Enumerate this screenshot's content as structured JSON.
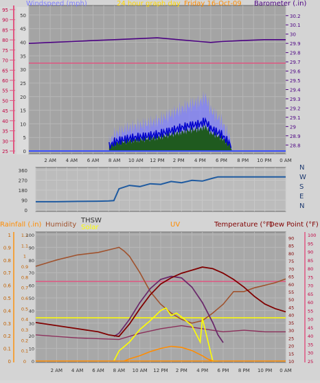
{
  "header": {
    "windspeed_label": "Windspeed (mph)",
    "graph_title": "24 hour graph day",
    "date_label": "Friday 16-Oct-09",
    "barometer_label": "Barometer (.in)"
  },
  "bottom_header": {
    "rainfall_label": "Rainfall (.in)",
    "humidity_label": "Humidity",
    "thsw_label": "THSW",
    "solar_label": "Solar",
    "uv_label": "UV",
    "temperature_label": "Temperature (°F)",
    "dewpoint_label": "Dew Point (°F)"
  },
  "colors": {
    "windspeed": "#8080ff",
    "barometer": "#4b0082",
    "title": "#ffd700",
    "temperature": "#800000",
    "humidity": "#a0522d",
    "rain": "#ff8c00",
    "solar": "#ffff00",
    "uv": "#ff8c00",
    "dewpoint": "#ff1493",
    "direction": "#1e5aa0"
  },
  "chart_data": [
    {
      "type": "line",
      "title": "24 hour graph day",
      "subtitle": "Friday 16-Oct-09",
      "x_ticks": [
        "2 AM",
        "4 AM",
        "6 AM",
        "8 AM",
        "10 AM",
        "12 PM",
        "2 PM",
        "4 PM",
        "6 PM",
        "8 PM",
        "10 PM",
        "0 AM"
      ],
      "y_left_label": "Windspeed (mph)",
      "y_left_ticks": [
        "0",
        "5",
        "10",
        "15",
        "20",
        "25",
        "30",
        "35",
        "40",
        "45",
        "50"
      ],
      "y_left_pink_ticks": [
        "25",
        "30",
        "35",
        "40",
        "45",
        "50",
        "55",
        "60",
        "65",
        "70",
        "75",
        "80",
        "85",
        "90",
        "95"
      ],
      "y_right_label": "Barometer (.in)",
      "y_right_ticks": [
        "28.8",
        "28.9",
        "29",
        "29.1",
        "29.2",
        "29.3",
        "29.4",
        "29.5",
        "29.6",
        "29.7",
        "29.8",
        "29.9",
        "30",
        "30.1",
        "30.2"
      ],
      "ylim_left": [
        0,
        52
      ],
      "ylim_right": [
        28.75,
        30.28
      ],
      "series": [
        {
          "name": "Barometer (.in)",
          "x_hours": [
            0,
            2,
            4,
            6,
            8,
            10,
            12,
            14,
            16,
            17,
            18,
            20,
            22,
            24
          ],
          "values": [
            29.9,
            29.91,
            29.92,
            29.93,
            29.94,
            29.95,
            29.96,
            29.94,
            29.92,
            29.91,
            29.92,
            29.93,
            29.94,
            29.94
          ]
        },
        {
          "name": "Windspeed (mph)",
          "x_hours": [
            0,
            7.5,
            8,
            9,
            10,
            11,
            12,
            13,
            14,
            15,
            16,
            16.5,
            17,
            18,
            19,
            24
          ],
          "values": [
            0,
            0,
            3,
            5,
            6,
            7,
            8,
            10,
            12,
            14,
            15,
            17,
            12,
            8,
            0,
            0
          ]
        }
      ]
    },
    {
      "type": "line",
      "title": "",
      "x_ticks": [
        "2 AM",
        "4 AM",
        "6 AM",
        "8 AM",
        "10 AM",
        "12 PM",
        "2 PM",
        "4 PM",
        "6 PM",
        "8 PM",
        "10 PM",
        "0 AM"
      ],
      "y_left_ticks": [
        "0",
        "90",
        "180",
        "270",
        "360"
      ],
      "y_right_ticks": [
        "N",
        "W",
        "S",
        "E",
        "N"
      ],
      "ylim": [
        0,
        360
      ],
      "series": [
        {
          "name": "Wind direction",
          "x_hours": [
            0,
            2,
            4,
            6,
            7,
            7.5,
            8,
            9,
            10,
            11,
            12,
            13,
            14,
            15,
            16,
            17,
            17.5,
            18,
            20,
            22,
            24
          ],
          "values": [
            75,
            75,
            78,
            80,
            82,
            85,
            200,
            215,
            220,
            230,
            240,
            250,
            255,
            260,
            270,
            280,
            300,
            300,
            300,
            300,
            300
          ]
        }
      ]
    },
    {
      "type": "line",
      "title": "",
      "x_ticks": [
        "2 AM",
        "4 AM",
        "6 AM",
        "8 AM",
        "10 AM",
        "12 PM",
        "2 PM",
        "4 PM",
        "6 PM",
        "8 PM",
        "10 PM",
        "0 AM"
      ],
      "y_left_rain_ticks": [
        "0",
        "0.1",
        "0.2",
        "0.3",
        "0.4",
        "0.5",
        "0.6",
        "0.7",
        "0.8",
        "0.9",
        "1"
      ],
      "y_left_uv_ticks": [
        "0",
        "0.1",
        "0.2",
        "0.3",
        "0.4",
        "0.5",
        "0.6",
        "0.7",
        "0.8",
        "0.9",
        "1",
        "1.1",
        "1.2"
      ],
      "y_left_humidity_ticks": [
        "0",
        "10",
        "20",
        "30",
        "40",
        "50",
        "60",
        "70",
        "80",
        "90",
        "100"
      ],
      "y_right_temp_ticks": [
        "10",
        "15",
        "20",
        "25",
        "30",
        "35",
        "40",
        "45",
        "50",
        "55",
        "60",
        "65",
        "70",
        "75",
        "80",
        "85",
        "90"
      ],
      "y_right_pink_ticks": [
        "25",
        "30",
        "35",
        "40",
        "45",
        "50",
        "55",
        "60",
        "65",
        "70",
        "75",
        "80",
        "85",
        "90",
        "95",
        "100"
      ],
      "ylim_left": [
        0,
        100
      ],
      "ylim_right": [
        10,
        92
      ],
      "series": [
        {
          "name": "Humidity",
          "x_hours": [
            0,
            2,
            4,
            6,
            7,
            8,
            8.5,
            9,
            10,
            11,
            12,
            13,
            14,
            15,
            16,
            17,
            18,
            19,
            20,
            21,
            22,
            23,
            24
          ],
          "values": [
            75,
            80,
            84,
            86,
            88,
            90,
            87,
            83,
            70,
            55,
            45,
            38,
            33,
            30,
            32,
            38,
            45,
            55,
            55,
            58,
            60,
            62,
            65
          ]
        },
        {
          "name": "Temperature (°F)",
          "x_hours": [
            0,
            2,
            4,
            6,
            7,
            8,
            9,
            10,
            11,
            12,
            13,
            14,
            15,
            16,
            17,
            18,
            19,
            20,
            21,
            22,
            23,
            24
          ],
          "values": [
            35,
            33,
            31,
            29,
            27,
            26,
            34,
            44,
            53,
            60,
            64,
            67,
            69,
            71,
            70,
            67,
            63,
            58,
            52,
            47,
            44,
            42
          ]
        },
        {
          "name": "Dew Point (°F)",
          "x_hours": [
            0,
            4,
            8,
            10,
            12,
            14,
            16,
            18,
            20,
            22,
            24
          ],
          "values": [
            27,
            25,
            24,
            28,
            31,
            33,
            31,
            29,
            30,
            29,
            29
          ]
        },
        {
          "name": "THSW",
          "x_hours": [
            7.5,
            8,
            9,
            10,
            11,
            12,
            13,
            14,
            15,
            16,
            17,
            17.5,
            18
          ],
          "values": [
            26,
            28,
            37,
            48,
            57,
            63,
            65,
            64,
            58,
            48,
            35,
            27,
            22
          ]
        },
        {
          "name": "Solar",
          "x_hours": [
            7.5,
            8,
            9,
            10,
            11,
            12,
            12.5,
            13,
            13.5,
            14,
            15,
            15.8,
            16,
            17,
            17.5
          ],
          "values": [
            0,
            8,
            15,
            25,
            32,
            40,
            42,
            36,
            38,
            35,
            28,
            15,
            34,
            0,
            0
          ]
        },
        {
          "name": "UV",
          "x_hours": [
            8.5,
            9,
            10,
            11,
            12,
            13,
            14,
            15,
            16,
            16.5,
            17
          ],
          "values": [
            0.0,
            0.02,
            0.05,
            0.09,
            0.12,
            0.14,
            0.13,
            0.1,
            0.05,
            0.02,
            0.0
          ]
        },
        {
          "name": "Rainfall (.in)",
          "x_hours": [
            0,
            24
          ],
          "values": [
            0,
            0
          ]
        }
      ]
    }
  ]
}
